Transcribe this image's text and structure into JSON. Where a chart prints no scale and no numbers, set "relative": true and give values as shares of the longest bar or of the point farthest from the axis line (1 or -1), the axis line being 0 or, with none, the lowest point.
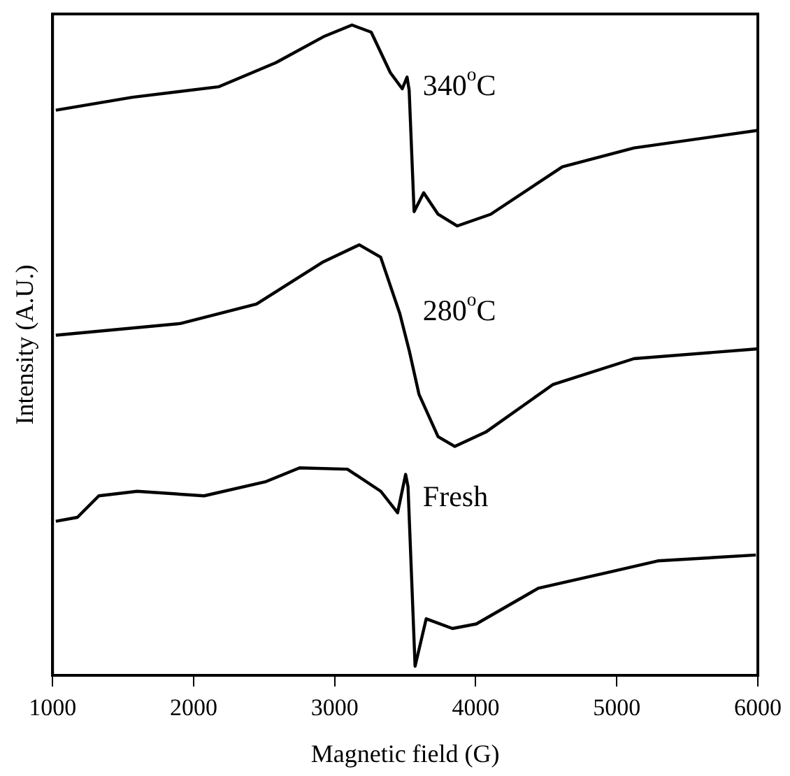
{
  "chart_data": {
    "type": "line",
    "xlabel": "Magnetic field (G)",
    "ylabel": "Intensity (A.U.)",
    "relative": true,
    "legend": false,
    "marker": "none",
    "line_style": "solid",
    "xlim": [
      1000,
      6000
    ],
    "xticks": [
      1000,
      2000,
      3000,
      4000,
      5000,
      6000
    ],
    "series": [
      {
        "name": "340$^{o}$C",
        "color": "#000000",
        "x": [
          1023,
          1566,
          2176,
          2582,
          2920,
          3123,
          3259,
          3394,
          3479,
          3513,
          3528,
          3563,
          3631,
          3733,
          3868,
          4106,
          4614,
          5122,
          6000
        ],
        "values": [
          0.869,
          0.889,
          0.905,
          0.942,
          0.982,
          1,
          0.989,
          0.927,
          0.902,
          0.92,
          0.9,
          0.713,
          0.742,
          0.709,
          0.691,
          0.709,
          0.782,
          0.811,
          0.838
        ]
      },
      {
        "name": "280$^{o}$C",
        "color": "#000000",
        "x": [
          1023,
          1904,
          2446,
          2920,
          3174,
          3326,
          3462,
          3530,
          3598,
          3733,
          3852,
          4071,
          4546,
          5122,
          6000
        ],
        "values": [
          0.523,
          0.541,
          0.571,
          0.636,
          0.662,
          0.643,
          0.556,
          0.498,
          0.432,
          0.367,
          0.352,
          0.374,
          0.447,
          0.487,
          0.502
        ]
      },
      {
        "name": "Fresh",
        "color": "#000000",
        "x": [
          1023,
          1176,
          1328,
          1600,
          2074,
          2514,
          2751,
          3090,
          3327,
          3446,
          3503,
          3520,
          3570,
          3649,
          3835,
          4004,
          4444,
          4952,
          5291,
          5986
        ],
        "values": [
          0.237,
          0.243,
          0.276,
          0.283,
          0.276,
          0.298,
          0.319,
          0.317,
          0.283,
          0.25,
          0.309,
          0.29,
          0.014,
          0.087,
          0.072,
          0.079,
          0.134,
          0.159,
          0.176,
          0.185
        ]
      }
    ]
  }
}
